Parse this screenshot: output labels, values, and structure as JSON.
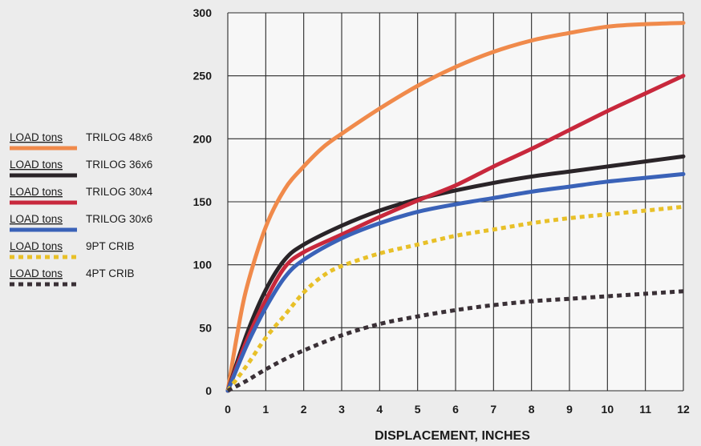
{
  "chart_data": {
    "type": "line",
    "title": "",
    "xlabel": "DISPLACEMENT, INCHES",
    "ylabel": "",
    "xlim": [
      0,
      12
    ],
    "ylim": [
      0,
      300
    ],
    "x_ticks": [
      0,
      1,
      2,
      3,
      4,
      5,
      6,
      7,
      8,
      9,
      10,
      11,
      12
    ],
    "y_ticks": [
      0,
      50,
      100,
      150,
      200,
      250,
      300
    ],
    "grid": true,
    "legend_position": "left",
    "series": [
      {
        "name": "LOAD tons TRILOG 48x6",
        "label_a": "LOAD tons",
        "label_b": "TRILOG 48x6",
        "color": "#f08a4b",
        "style": "solid",
        "points": [
          [
            0,
            0
          ],
          [
            0.25,
            45
          ],
          [
            0.5,
            82
          ],
          [
            1,
            130
          ],
          [
            1.5,
            160
          ],
          [
            2,
            178
          ],
          [
            2.5,
            193
          ],
          [
            3,
            204
          ],
          [
            4,
            224
          ],
          [
            5,
            242
          ],
          [
            6,
            257
          ],
          [
            7,
            269
          ],
          [
            8,
            278
          ],
          [
            9,
            284
          ],
          [
            10,
            289
          ],
          [
            11,
            291
          ],
          [
            12,
            292
          ]
        ]
      },
      {
        "name": "LOAD tons TRILOG 36x6",
        "label_a": "LOAD tons",
        "label_b": "TRILOG 36x6",
        "color": "#2a2428",
        "style": "solid",
        "points": [
          [
            0,
            0
          ],
          [
            0.5,
            45
          ],
          [
            1,
            80
          ],
          [
            1.5,
            104
          ],
          [
            2,
            116
          ],
          [
            3,
            131
          ],
          [
            4,
            143
          ],
          [
            5,
            152
          ],
          [
            6,
            159
          ],
          [
            7,
            165
          ],
          [
            8,
            170
          ],
          [
            9,
            174
          ],
          [
            10,
            178
          ],
          [
            11,
            182
          ],
          [
            12,
            186
          ]
        ]
      },
      {
        "name": "LOAD tons TRILOG 30x4",
        "label_a": "LOAD tons",
        "label_b": "TRILOG 30x4",
        "color": "#c8283c",
        "style": "solid",
        "points": [
          [
            0,
            0
          ],
          [
            0.5,
            40
          ],
          [
            1,
            72
          ],
          [
            1.5,
            98
          ],
          [
            2,
            110
          ],
          [
            3,
            124
          ],
          [
            4,
            138
          ],
          [
            5,
            151
          ],
          [
            6,
            163
          ],
          [
            7,
            178
          ],
          [
            8,
            192
          ],
          [
            9,
            207
          ],
          [
            10,
            222
          ],
          [
            11,
            236
          ],
          [
            12,
            250
          ]
        ]
      },
      {
        "name": "LOAD tons TRILOG 30x6",
        "label_a": "LOAD tons",
        "label_b": "TRILOG 30x6",
        "color": "#3a62b8",
        "style": "solid",
        "points": [
          [
            0,
            0
          ],
          [
            0.5,
            36
          ],
          [
            1,
            66
          ],
          [
            1.5,
            90
          ],
          [
            2,
            104
          ],
          [
            3,
            121
          ],
          [
            4,
            133
          ],
          [
            5,
            142
          ],
          [
            6,
            148
          ],
          [
            7,
            153
          ],
          [
            8,
            158
          ],
          [
            9,
            162
          ],
          [
            10,
            166
          ],
          [
            11,
            169
          ],
          [
            12,
            172
          ]
        ]
      },
      {
        "name": "LOAD tons 9PT CRIB",
        "label_a": "LOAD tons",
        "label_b": "9PT CRIB",
        "color": "#e8c028",
        "style": "dotted",
        "points": [
          [
            0,
            0
          ],
          [
            0.5,
            20
          ],
          [
            1,
            42
          ],
          [
            1.5,
            60
          ],
          [
            2,
            78
          ],
          [
            2.5,
            91
          ],
          [
            3,
            99
          ],
          [
            4,
            109
          ],
          [
            5,
            116
          ],
          [
            6,
            123
          ],
          [
            7,
            128
          ],
          [
            8,
            133
          ],
          [
            9,
            137
          ],
          [
            10,
            140
          ],
          [
            11,
            143
          ],
          [
            12,
            146
          ]
        ]
      },
      {
        "name": "LOAD tons 4PT CRIB",
        "label_a": "LOAD tons",
        "label_b": "4PT CRIB",
        "color": "#3a3036",
        "style": "dotted",
        "points": [
          [
            0,
            0
          ],
          [
            0.5,
            8
          ],
          [
            1,
            17
          ],
          [
            1.5,
            25
          ],
          [
            2,
            32
          ],
          [
            3,
            44
          ],
          [
            4,
            53
          ],
          [
            5,
            59
          ],
          [
            6,
            64
          ],
          [
            7,
            68
          ],
          [
            8,
            71
          ],
          [
            9,
            73
          ],
          [
            10,
            75
          ],
          [
            11,
            77
          ],
          [
            12,
            79
          ]
        ]
      }
    ]
  }
}
